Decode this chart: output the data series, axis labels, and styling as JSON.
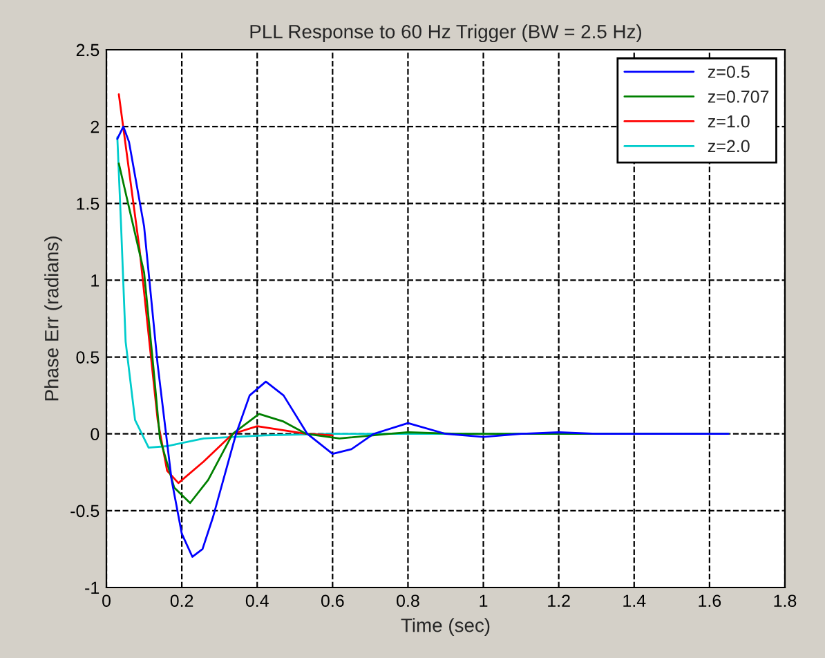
{
  "chart_data": {
    "type": "line",
    "title": "PLL Response to 60 Hz Trigger (BW = 2.5 Hz)",
    "xlabel": "Time (sec)",
    "ylabel": "Phase Err (radians)",
    "xlim": [
      0,
      1.8
    ],
    "xticks": [
      0,
      0.2,
      0.4,
      0.6,
      0.8,
      1,
      1.2,
      1.4,
      1.6,
      1.8
    ],
    "ylim": [
      -1,
      2.5
    ],
    "yticks": [
      -1,
      -0.5,
      0,
      0.5,
      1,
      1.5,
      2,
      2.5
    ],
    "grid": true,
    "legend": "top right",
    "line_style": "solid",
    "marker": "none",
    "series": [
      {
        "name": "z=0.5",
        "color": "#0000ff",
        "x": [
          0.029,
          0.045,
          0.06,
          0.1,
          0.136,
          0.173,
          0.2,
          0.228,
          0.255,
          0.283,
          0.344,
          0.38,
          0.423,
          0.47,
          0.533,
          0.6,
          0.65,
          0.709,
          0.8,
          0.9,
          1.0,
          1.1,
          1.2,
          1.3,
          1.4,
          1.5,
          1.6,
          1.65
        ],
        "values": [
          1.92,
          2.0,
          1.9,
          1.35,
          0.45,
          -0.3,
          -0.65,
          -0.8,
          -0.75,
          -0.54,
          0.0,
          0.25,
          0.34,
          0.25,
          0.0,
          -0.13,
          -0.1,
          0.0,
          0.07,
          0.0,
          -0.02,
          0.0,
          0.01,
          0.0,
          0.0,
          0.0,
          0.0,
          0.0
        ]
      },
      {
        "name": "z=0.707",
        "color": "#008000",
        "x": [
          0.033,
          0.1,
          0.124,
          0.142,
          0.18,
          0.222,
          0.27,
          0.335,
          0.405,
          0.47,
          0.53,
          0.618,
          0.75,
          0.8,
          0.93,
          1.2,
          1.65
        ],
        "values": [
          1.76,
          1.05,
          0.45,
          -0.03,
          -0.35,
          -0.45,
          -0.3,
          0.0,
          0.13,
          0.08,
          0.0,
          -0.03,
          0.0,
          0.01,
          0.0,
          0.0,
          0.0
        ]
      },
      {
        "name": "z=1.0",
        "color": "#ff0000",
        "x": [
          0.033,
          0.088,
          0.136,
          0.161,
          0.191,
          0.258,
          0.335,
          0.4,
          0.53,
          0.6
        ],
        "values": [
          2.21,
          1.2,
          0.09,
          -0.24,
          -0.32,
          -0.18,
          0.0,
          0.05,
          0.0,
          -0.01
        ]
      },
      {
        "name": "z=2.0",
        "color": "#00cccc",
        "x": [
          0.029,
          0.039,
          0.051,
          0.076,
          0.112,
          0.161,
          0.258,
          0.42,
          0.6,
          1.0,
          1.65
        ],
        "values": [
          1.93,
          1.35,
          0.6,
          0.09,
          -0.09,
          -0.08,
          -0.03,
          -0.01,
          0.0,
          0.0,
          0.0
        ]
      }
    ]
  }
}
